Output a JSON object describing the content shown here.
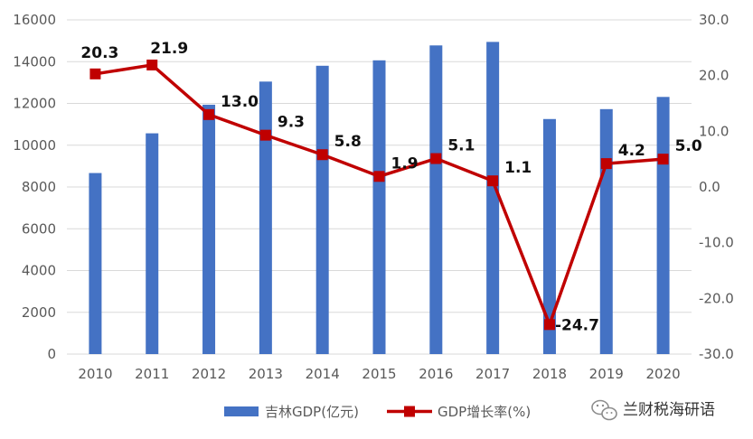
{
  "chart_data": {
    "type": "bar",
    "categories": [
      "2010",
      "2011",
      "2012",
      "2013",
      "2014",
      "2015",
      "2016",
      "2017",
      "2018",
      "2019",
      "2020"
    ],
    "series": [
      {
        "name": "吉林GDP(亿元)",
        "type": "bar",
        "axis": "left",
        "color": "#4472C4",
        "values": [
          8668,
          10569,
          11939,
          13046,
          13803,
          14063,
          14777,
          14945,
          11253,
          11727,
          12311
        ]
      },
      {
        "name": "GDP增长率(%)",
        "type": "line",
        "axis": "right",
        "color": "#C00000",
        "values": [
          20.3,
          21.9,
          13.0,
          9.3,
          5.8,
          1.9,
          5.1,
          1.1,
          -24.7,
          4.2,
          5.0
        ],
        "labels": [
          "20.3",
          "21.9",
          "13.0",
          "9.3",
          "5.8",
          "1.9",
          "5.1",
          "1.1",
          "-24.7",
          "4.2",
          "5.0"
        ]
      }
    ],
    "y_left": {
      "min": 0,
      "max": 16000,
      "step": 2000,
      "ticks": [
        "0",
        "2000",
        "4000",
        "6000",
        "8000",
        "10000",
        "12000",
        "14000",
        "16000"
      ]
    },
    "y_right": {
      "min": -30,
      "max": 30,
      "step": 10,
      "ticks": [
        "-30.0",
        "-20.0",
        "-10.0",
        "0.0",
        "10.0",
        "20.0",
        "30.0"
      ]
    },
    "grid": true,
    "legend_position": "bottom"
  },
  "watermark": {
    "text": "兰财税海研语",
    "icon": "wechat-icon"
  }
}
